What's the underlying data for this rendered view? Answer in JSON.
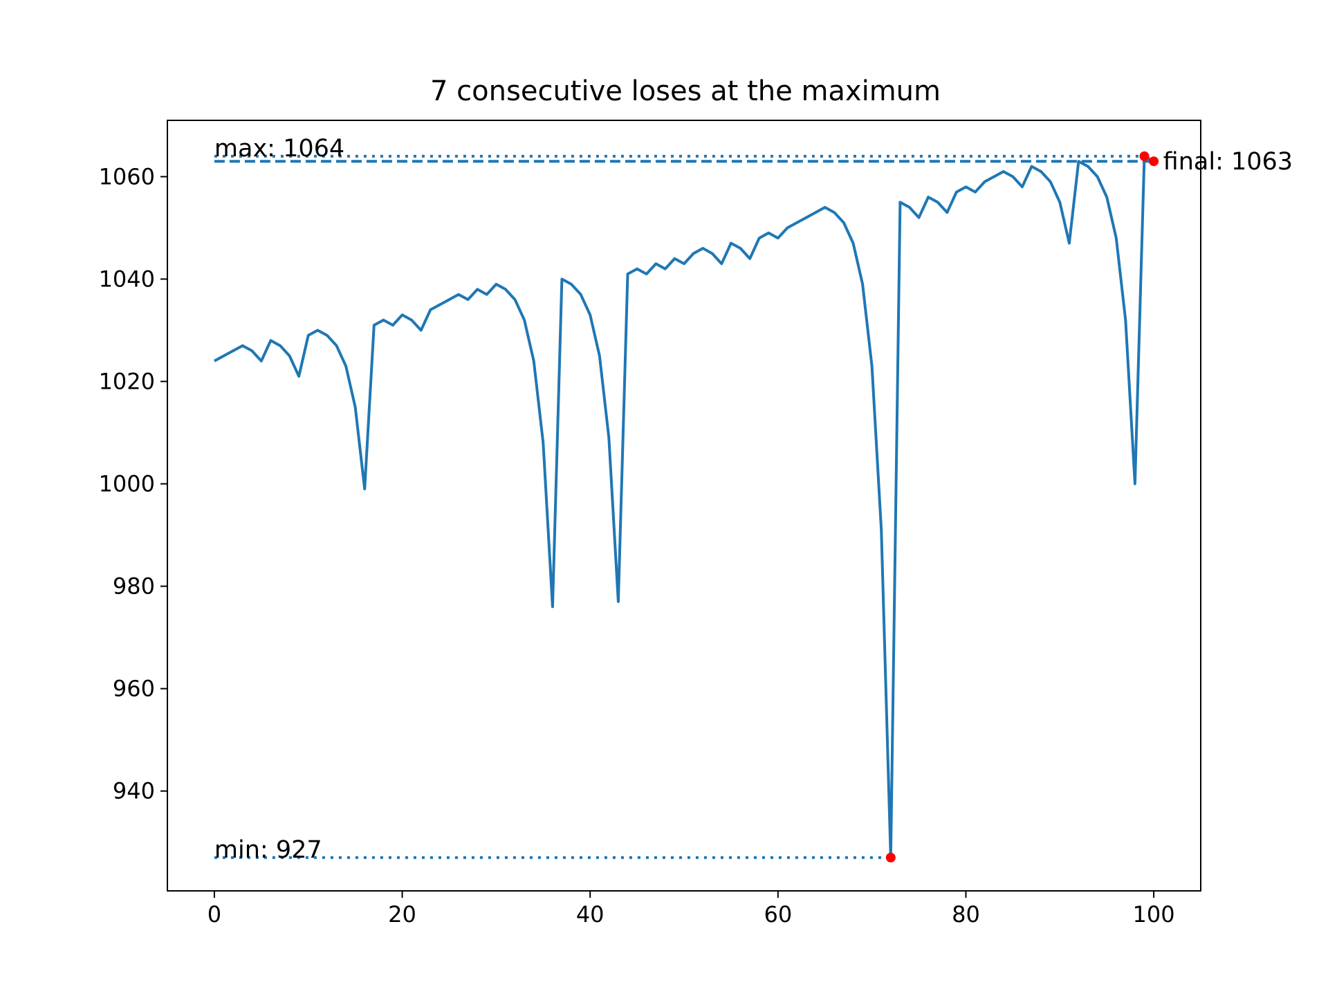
{
  "chart_data": {
    "type": "line",
    "title": "7 consecutive loses at the maximum",
    "xlabel": "",
    "ylabel": "",
    "xlim": [
      -5,
      105
    ],
    "ylim": [
      920.5,
      1071
    ],
    "grid": false,
    "x_ticks": [
      0,
      20,
      40,
      60,
      80,
      100
    ],
    "x_tick_labels": [
      "0",
      "20",
      "40",
      "60",
      "80",
      "100"
    ],
    "y_ticks": [
      940,
      960,
      980,
      1000,
      1020,
      1040,
      1060
    ],
    "y_tick_labels": [
      "940",
      "960",
      "980",
      "1000",
      "1020",
      "1040",
      "1060"
    ],
    "series": [
      {
        "color": "#1f77b4",
        "x": [
          0,
          1,
          2,
          3,
          4,
          5,
          6,
          7,
          8,
          9,
          10,
          11,
          12,
          13,
          14,
          15,
          16,
          17,
          18,
          19,
          20,
          21,
          22,
          23,
          24,
          25,
          26,
          27,
          28,
          29,
          30,
          31,
          32,
          33,
          34,
          35,
          36,
          37,
          38,
          39,
          40,
          41,
          42,
          43,
          44,
          45,
          46,
          47,
          48,
          49,
          50,
          51,
          52,
          53,
          54,
          55,
          56,
          57,
          58,
          59,
          60,
          61,
          62,
          63,
          64,
          65,
          66,
          67,
          68,
          69,
          70,
          71,
          72,
          73,
          74,
          75,
          76,
          77,
          78,
          79,
          80,
          81,
          82,
          83,
          84,
          85,
          86,
          87,
          88,
          89,
          90,
          91,
          92,
          93,
          94,
          95,
          96,
          97,
          98,
          99,
          100
        ],
        "values": [
          1024,
          1025,
          1026,
          1027,
          1026,
          1024,
          1028,
          1027,
          1025,
          1021,
          1029,
          1030,
          1029,
          1027,
          1023,
          1015,
          999,
          1031,
          1032,
          1031,
          1033,
          1032,
          1030,
          1034,
          1035,
          1036,
          1037,
          1036,
          1038,
          1037,
          1039,
          1038,
          1036,
          1032,
          1024,
          1008,
          976,
          1040,
          1039,
          1037,
          1033,
          1025,
          1009,
          977,
          1041,
          1042,
          1041,
          1043,
          1042,
          1044,
          1043,
          1045,
          1046,
          1045,
          1043,
          1047,
          1046,
          1044,
          1048,
          1049,
          1048,
          1050,
          1051,
          1052,
          1053,
          1054,
          1053,
          1051,
          1047,
          1039,
          1023,
          991,
          927,
          1055,
          1054,
          1052,
          1056,
          1055,
          1053,
          1057,
          1058,
          1057,
          1059,
          1060,
          1061,
          1060,
          1058,
          1062,
          1061,
          1059,
          1055,
          1047,
          1063,
          1062,
          1060,
          1056,
          1048,
          1032,
          1000,
          1064,
          1063
        ]
      }
    ],
    "reference_lines": [
      {
        "kind": "max",
        "value": 1064,
        "style": "dotted",
        "x_from": 0,
        "x_to": 99,
        "color": "#1f77b4"
      },
      {
        "kind": "final",
        "value": 1063,
        "style": "dashed",
        "x_from": 0,
        "x_to": 100,
        "color": "#1f77b4"
      },
      {
        "kind": "min",
        "value": 927,
        "style": "dotted",
        "x_from": 0,
        "x_to": 72,
        "color": "#1f77b4"
      }
    ],
    "markers": [
      {
        "x": 99,
        "y": 1064,
        "color": "#ff0000"
      },
      {
        "x": 100,
        "y": 1063,
        "color": "#ff0000"
      },
      {
        "x": 72,
        "y": 927,
        "color": "#ff0000"
      }
    ],
    "annotations": [
      {
        "text": "max: 1064",
        "x": 0,
        "y": 1064
      },
      {
        "text": "min: 927",
        "x": 0,
        "y": 927
      },
      {
        "text": "final: 1063",
        "x": 101,
        "y": 1063
      }
    ]
  }
}
